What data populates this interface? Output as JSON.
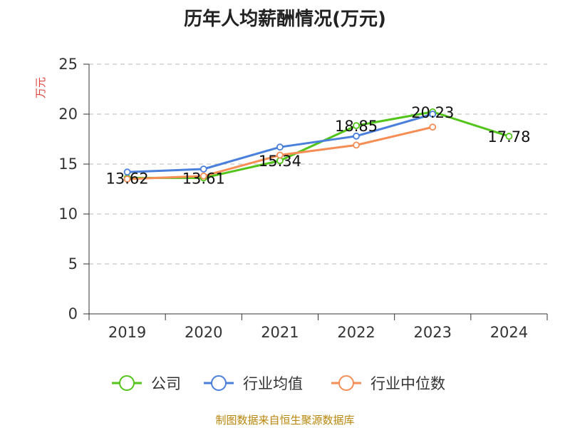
{
  "chart_data": {
    "type": "line",
    "title": "历年人均薪酬情况(万元)",
    "ylabel": "万元",
    "xlabel": "",
    "categories": [
      "2019",
      "2020",
      "2021",
      "2022",
      "2023",
      "2024"
    ],
    "ylim": [
      0,
      25
    ],
    "yticks": [
      0,
      5,
      10,
      15,
      20,
      25
    ],
    "grid": true,
    "legend_position": "bottom",
    "series": [
      {
        "name": "公司",
        "color": "#52c41a",
        "values": [
          13.62,
          13.61,
          15.34,
          18.85,
          20.23,
          17.78
        ],
        "labels": [
          "13.62",
          "13.61",
          "15.34",
          "18.85",
          "20.23",
          "17.78"
        ]
      },
      {
        "name": "行业均值",
        "color": "#4a7fdc",
        "values": [
          14.2,
          14.5,
          16.7,
          17.8,
          20.0,
          null
        ]
      },
      {
        "name": "行业中位数",
        "color": "#f58d55",
        "values": [
          13.5,
          13.8,
          15.9,
          16.9,
          18.7,
          null
        ]
      }
    ]
  },
  "colors": {
    "ylabel": "#e0403a",
    "source": "#b8860b"
  },
  "source_note": "制图数据来自恒生聚源数据库"
}
